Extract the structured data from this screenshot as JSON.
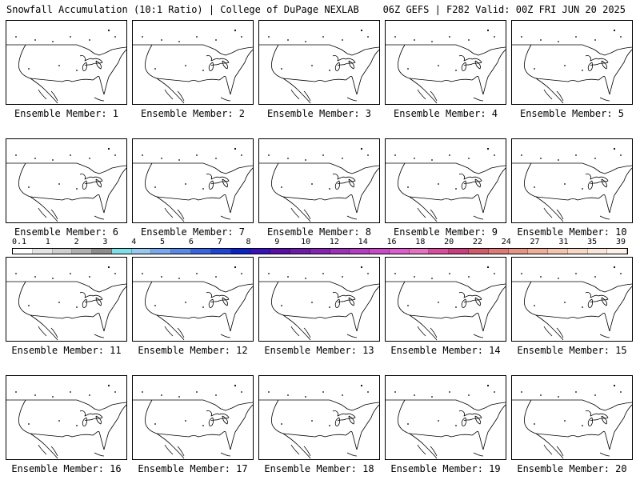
{
  "header": {
    "left": "Snowfall Accumulation (10:1 Ratio) | College of DuPage NEXLAB",
    "right": "06Z GEFS | F282 Valid: 00Z FRI JUN 20 2025"
  },
  "members": [
    {
      "label": "Ensemble Member: 1"
    },
    {
      "label": "Ensemble Member: 2"
    },
    {
      "label": "Ensemble Member: 3"
    },
    {
      "label": "Ensemble Member: 4"
    },
    {
      "label": "Ensemble Member: 5"
    },
    {
      "label": "Ensemble Member: 6"
    },
    {
      "label": "Ensemble Member: 7"
    },
    {
      "label": "Ensemble Member: 8"
    },
    {
      "label": "Ensemble Member: 9"
    },
    {
      "label": "Ensemble Member: 10"
    },
    {
      "label": "Ensemble Member: 11"
    },
    {
      "label": "Ensemble Member: 12"
    },
    {
      "label": "Ensemble Member: 13"
    },
    {
      "label": "Ensemble Member: 14"
    },
    {
      "label": "Ensemble Member: 15"
    },
    {
      "label": "Ensemble Member: 16"
    },
    {
      "label": "Ensemble Member: 17"
    },
    {
      "label": "Ensemble Member: 18"
    },
    {
      "label": "Ensemble Member: 19"
    },
    {
      "label": "Ensemble Member: 20"
    }
  ],
  "colorbar": {
    "ticks": [
      "0.1",
      "1",
      "2",
      "3",
      "4",
      "5",
      "6",
      "7",
      "8",
      "9",
      "10",
      "12",
      "14",
      "16",
      "18",
      "20",
      "22",
      "24",
      "27",
      "31",
      "35",
      "39"
    ],
    "colors": [
      "#ffffff",
      "#e4e4e4",
      "#cfcfcf",
      "#b0b0b0",
      "#8c8c8c",
      "#7ee0e6",
      "#98c8f0",
      "#78a8ec",
      "#5a88e6",
      "#3a64de",
      "#1e44d6",
      "#0a22c8",
      "#3a10b8",
      "#5a0ea8",
      "#6c1aa8",
      "#8424b0",
      "#9c30b8",
      "#b43cc0",
      "#c84ac6",
      "#dc5ccc",
      "#e472c0",
      "#d84c9c",
      "#c83c80",
      "#d05a6a",
      "#dc7a78",
      "#e49484",
      "#ecae98",
      "#f2c4ae",
      "#f6d6c4",
      "#fae6d8",
      "#fdf1e8"
    ]
  }
}
